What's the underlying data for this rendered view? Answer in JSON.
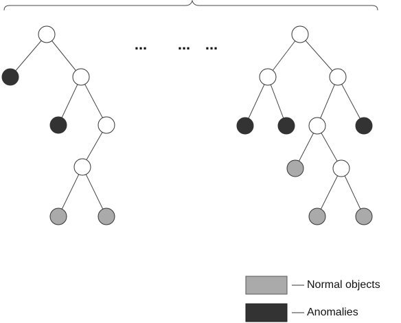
{
  "ellipses": [
    "...",
    "...",
    "..."
  ],
  "legend": [
    {
      "label": "Normal objects"
    },
    {
      "label": "Anomalies"
    }
  ]
}
